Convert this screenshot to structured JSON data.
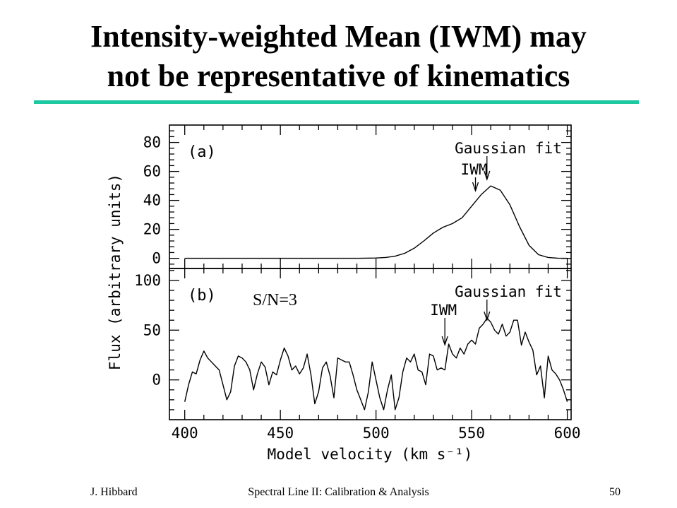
{
  "slide": {
    "title_line_1": "Intensity-weighted Mean (IWM) may",
    "title_line_2": "not be representative of kinematics",
    "rule_color": "#1ec8a0",
    "footer_left": "J. Hibbard",
    "footer_center": "Spectral Line II: Calibration & Analysis",
    "footer_right": "50"
  },
  "chart_data": [
    {
      "type": "line",
      "panel_label": "(a)",
      "x": [
        400,
        420,
        440,
        460,
        480,
        490,
        500,
        505,
        510,
        515,
        520,
        525,
        530,
        535,
        540,
        545,
        550,
        555,
        560,
        565,
        570,
        575,
        580,
        585,
        590,
        595,
        600
      ],
      "series": [
        {
          "values": [
            0,
            0,
            0,
            0,
            0,
            0,
            0.2,
            0.6,
            1.5,
            3.5,
            7,
            12,
            17.5,
            21.5,
            24,
            28,
            36,
            44,
            50,
            47,
            37,
            22,
            9,
            2.5,
            0.6,
            0.1,
            0
          ]
        }
      ],
      "xlim": [
        392,
        602
      ],
      "ylim": [
        -7,
        92
      ],
      "yticks": [
        0,
        20,
        40,
        60,
        80
      ],
      "ytick_labels": [
        "0",
        "20",
        "40",
        "60",
        "80"
      ],
      "annotations": [
        {
          "text": "Gaussian fit",
          "x": 558
        },
        {
          "text": "IWM",
          "x": 552
        }
      ]
    },
    {
      "type": "line",
      "panel_label": "(b)",
      "annotation_text": "S/N=3",
      "x": [
        400,
        402,
        404,
        406,
        408,
        410,
        412,
        414,
        416,
        418,
        420,
        422,
        424,
        426,
        428,
        430,
        432,
        434,
        436,
        438,
        440,
        442,
        444,
        446,
        448,
        450,
        452,
        454,
        456,
        458,
        460,
        462,
        464,
        466,
        468,
        470,
        472,
        474,
        476,
        478,
        480,
        482,
        484,
        486,
        488,
        490,
        492,
        494,
        496,
        498,
        500,
        502,
        504,
        506,
        508,
        510,
        512,
        514,
        516,
        518,
        520,
        522,
        524,
        526,
        528,
        530,
        532,
        534,
        536,
        538,
        540,
        542,
        544,
        546,
        548,
        550,
        552,
        554,
        556,
        558,
        560,
        562,
        564,
        566,
        568,
        570,
        572,
        574,
        576,
        578,
        580,
        582,
        584,
        586,
        588,
        590,
        592,
        594,
        596,
        598,
        600
      ],
      "series": [
        {
          "values": [
            -22,
            -5,
            8,
            6,
            20,
            29,
            22,
            18,
            14,
            10,
            -5,
            -20,
            -12,
            14,
            24,
            22,
            18,
            10,
            -10,
            6,
            18,
            13,
            -5,
            8,
            5,
            20,
            32,
            24,
            10,
            14,
            6,
            12,
            26,
            5,
            -24,
            -12,
            12,
            18,
            4,
            -18,
            22,
            20,
            18,
            18,
            5,
            -10,
            -20,
            -30,
            -12,
            18,
            0,
            -18,
            -30,
            -10,
            5,
            -30,
            -18,
            8,
            22,
            18,
            26,
            10,
            8,
            -5,
            26,
            24,
            10,
            12,
            10,
            36,
            26,
            22,
            32,
            26,
            36,
            40,
            36,
            52,
            56,
            62,
            58,
            50,
            46,
            56,
            44,
            48,
            60,
            60,
            35,
            48,
            38,
            30,
            5,
            14,
            -18,
            24,
            10,
            6,
            0,
            -10,
            -22
          ]
        }
      ],
      "xlim": [
        392,
        602
      ],
      "ylim": [
        -40,
        112
      ],
      "yticks": [
        0,
        50,
        100
      ],
      "ytick_labels": [
        "0",
        "50",
        "100"
      ],
      "xticks": [
        400,
        450,
        500,
        550,
        600
      ],
      "xtick_labels": [
        "400",
        "450",
        "500",
        "550",
        "600"
      ],
      "annotations": [
        {
          "text": "Gaussian fit",
          "x": 558
        },
        {
          "text": "IWM",
          "x": 536
        }
      ]
    }
  ],
  "axes": {
    "xlabel": "Model velocity (km s⁻¹)",
    "ylabel": "Flux (arbitrary units)"
  }
}
